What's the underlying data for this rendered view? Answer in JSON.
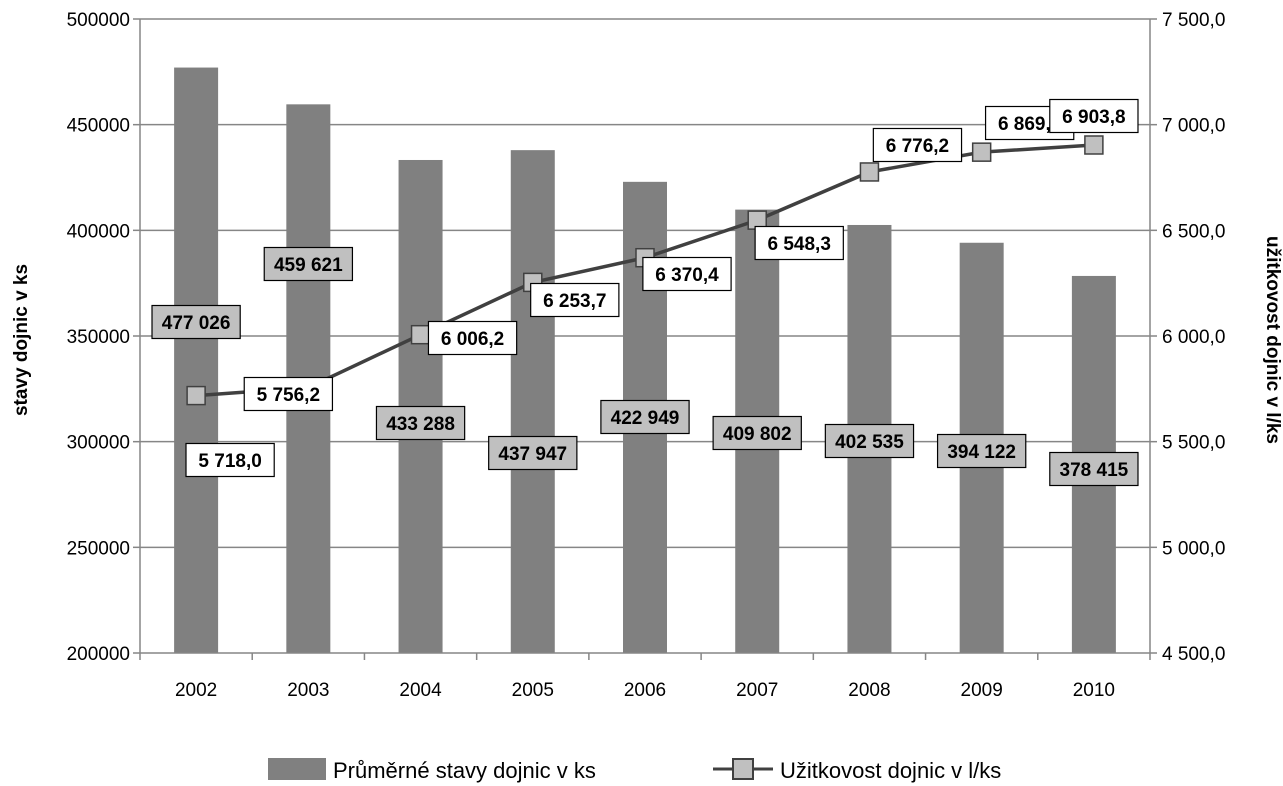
{
  "chart_data": {
    "type": "bar",
    "categories": [
      "2002",
      "2003",
      "2004",
      "2005",
      "2006",
      "2007",
      "2008",
      "2009",
      "2010"
    ],
    "series": [
      {
        "name": "Průměrné stavy dojnic v ks",
        "type": "bar",
        "axis": "left",
        "values": [
          477026,
          459621,
          433288,
          437947,
          422949,
          409802,
          402535,
          394122,
          378415
        ],
        "labels": [
          "477 026",
          "459 621",
          "433 288",
          "437 947",
          "422 949",
          "409 802",
          "402 535",
          "394 122",
          "378 415"
        ],
        "color": "#808080"
      },
      {
        "name": "Užitkovost dojnic v l/ks",
        "type": "line",
        "axis": "right",
        "values": [
          5718.0,
          5756.2,
          6006.2,
          6253.7,
          6370.4,
          6548.3,
          6776.2,
          6869.9,
          6903.8
        ],
        "labels": [
          "5 718,0",
          "5 756,2",
          "6 006,2",
          "6 253,7",
          "6 370,4",
          "6 548,3",
          "6 776,2",
          "6 869,9",
          "6 903,8"
        ],
        "color": "#404040",
        "marker_color": "#c0c0c0"
      }
    ],
    "ylabel": "stavy dojnic v ks",
    "y2label": "užitkovost dojnic v l/ks",
    "ylim": [
      200000,
      500000
    ],
    "y2lim": [
      4500,
      7500
    ],
    "yticks": [
      "200000",
      "250000",
      "300000",
      "350000",
      "400000",
      "450000",
      "500000"
    ],
    "y2ticks": [
      "4 500,0",
      "5 000,0",
      "5 500,0",
      "6 000,0",
      "6 500,0",
      "7 000,0",
      "7 500,0"
    ],
    "grid": true,
    "legend_position": "bottom"
  }
}
